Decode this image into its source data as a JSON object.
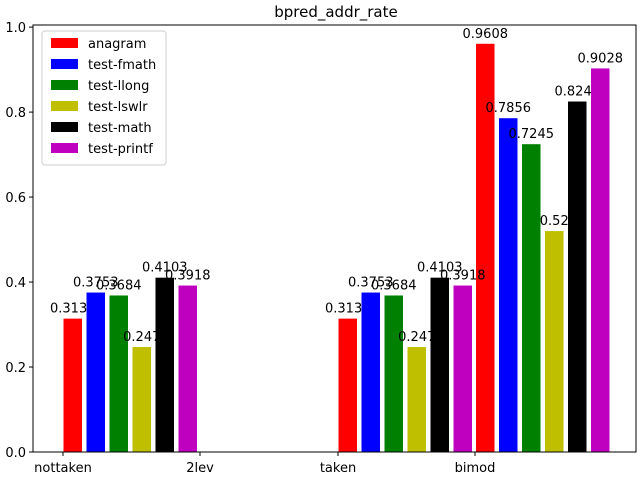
{
  "chart_data": {
    "type": "bar",
    "title": "bpred_addr_rate",
    "xlabel": "",
    "ylabel": "",
    "ylim": [
      0,
      1.0
    ],
    "yticks": [
      "0.0",
      "0.2",
      "0.4",
      "0.6",
      "0.8",
      "1.0"
    ],
    "categories": [
      "nottaken",
      "2lev",
      "taken",
      "bimod"
    ],
    "legend_position": "top-left",
    "grid": false,
    "series": [
      {
        "name": "anagram",
        "color": "#ff0000",
        "values": [
          0.3139,
          null,
          0.3139,
          0.9608
        ],
        "labels": [
          "0.3139",
          "",
          "0.3139",
          "0.9608"
        ]
      },
      {
        "name": "test-fmath",
        "color": "#0000ff",
        "values": [
          0.3753,
          null,
          0.3753,
          0.7856
        ],
        "labels": [
          "0.3753",
          "",
          "0.3753",
          "0.7856"
        ]
      },
      {
        "name": "test-llong",
        "color": "#008000",
        "values": [
          0.3684,
          null,
          0.3684,
          0.7245
        ],
        "labels": [
          "0.3684",
          "",
          "0.3684",
          "0.7245"
        ]
      },
      {
        "name": "test-lswlr",
        "color": "#bfbf00",
        "values": [
          0.247,
          null,
          0.247,
          0.52
        ],
        "labels": [
          "0.247",
          "",
          "0.247",
          "0.52"
        ]
      },
      {
        "name": "test-math",
        "color": "#000000",
        "values": [
          0.4103,
          null,
          0.4103,
          0.8249
        ],
        "labels": [
          "0.4103",
          "",
          "0.4103",
          "0.8249"
        ]
      },
      {
        "name": "test-printf",
        "color": "#bf00bf",
        "values": [
          0.3918,
          null,
          0.3918,
          0.9028
        ],
        "labels": [
          "0.3918",
          "",
          "0.3918",
          "0.9028"
        ]
      }
    ]
  }
}
